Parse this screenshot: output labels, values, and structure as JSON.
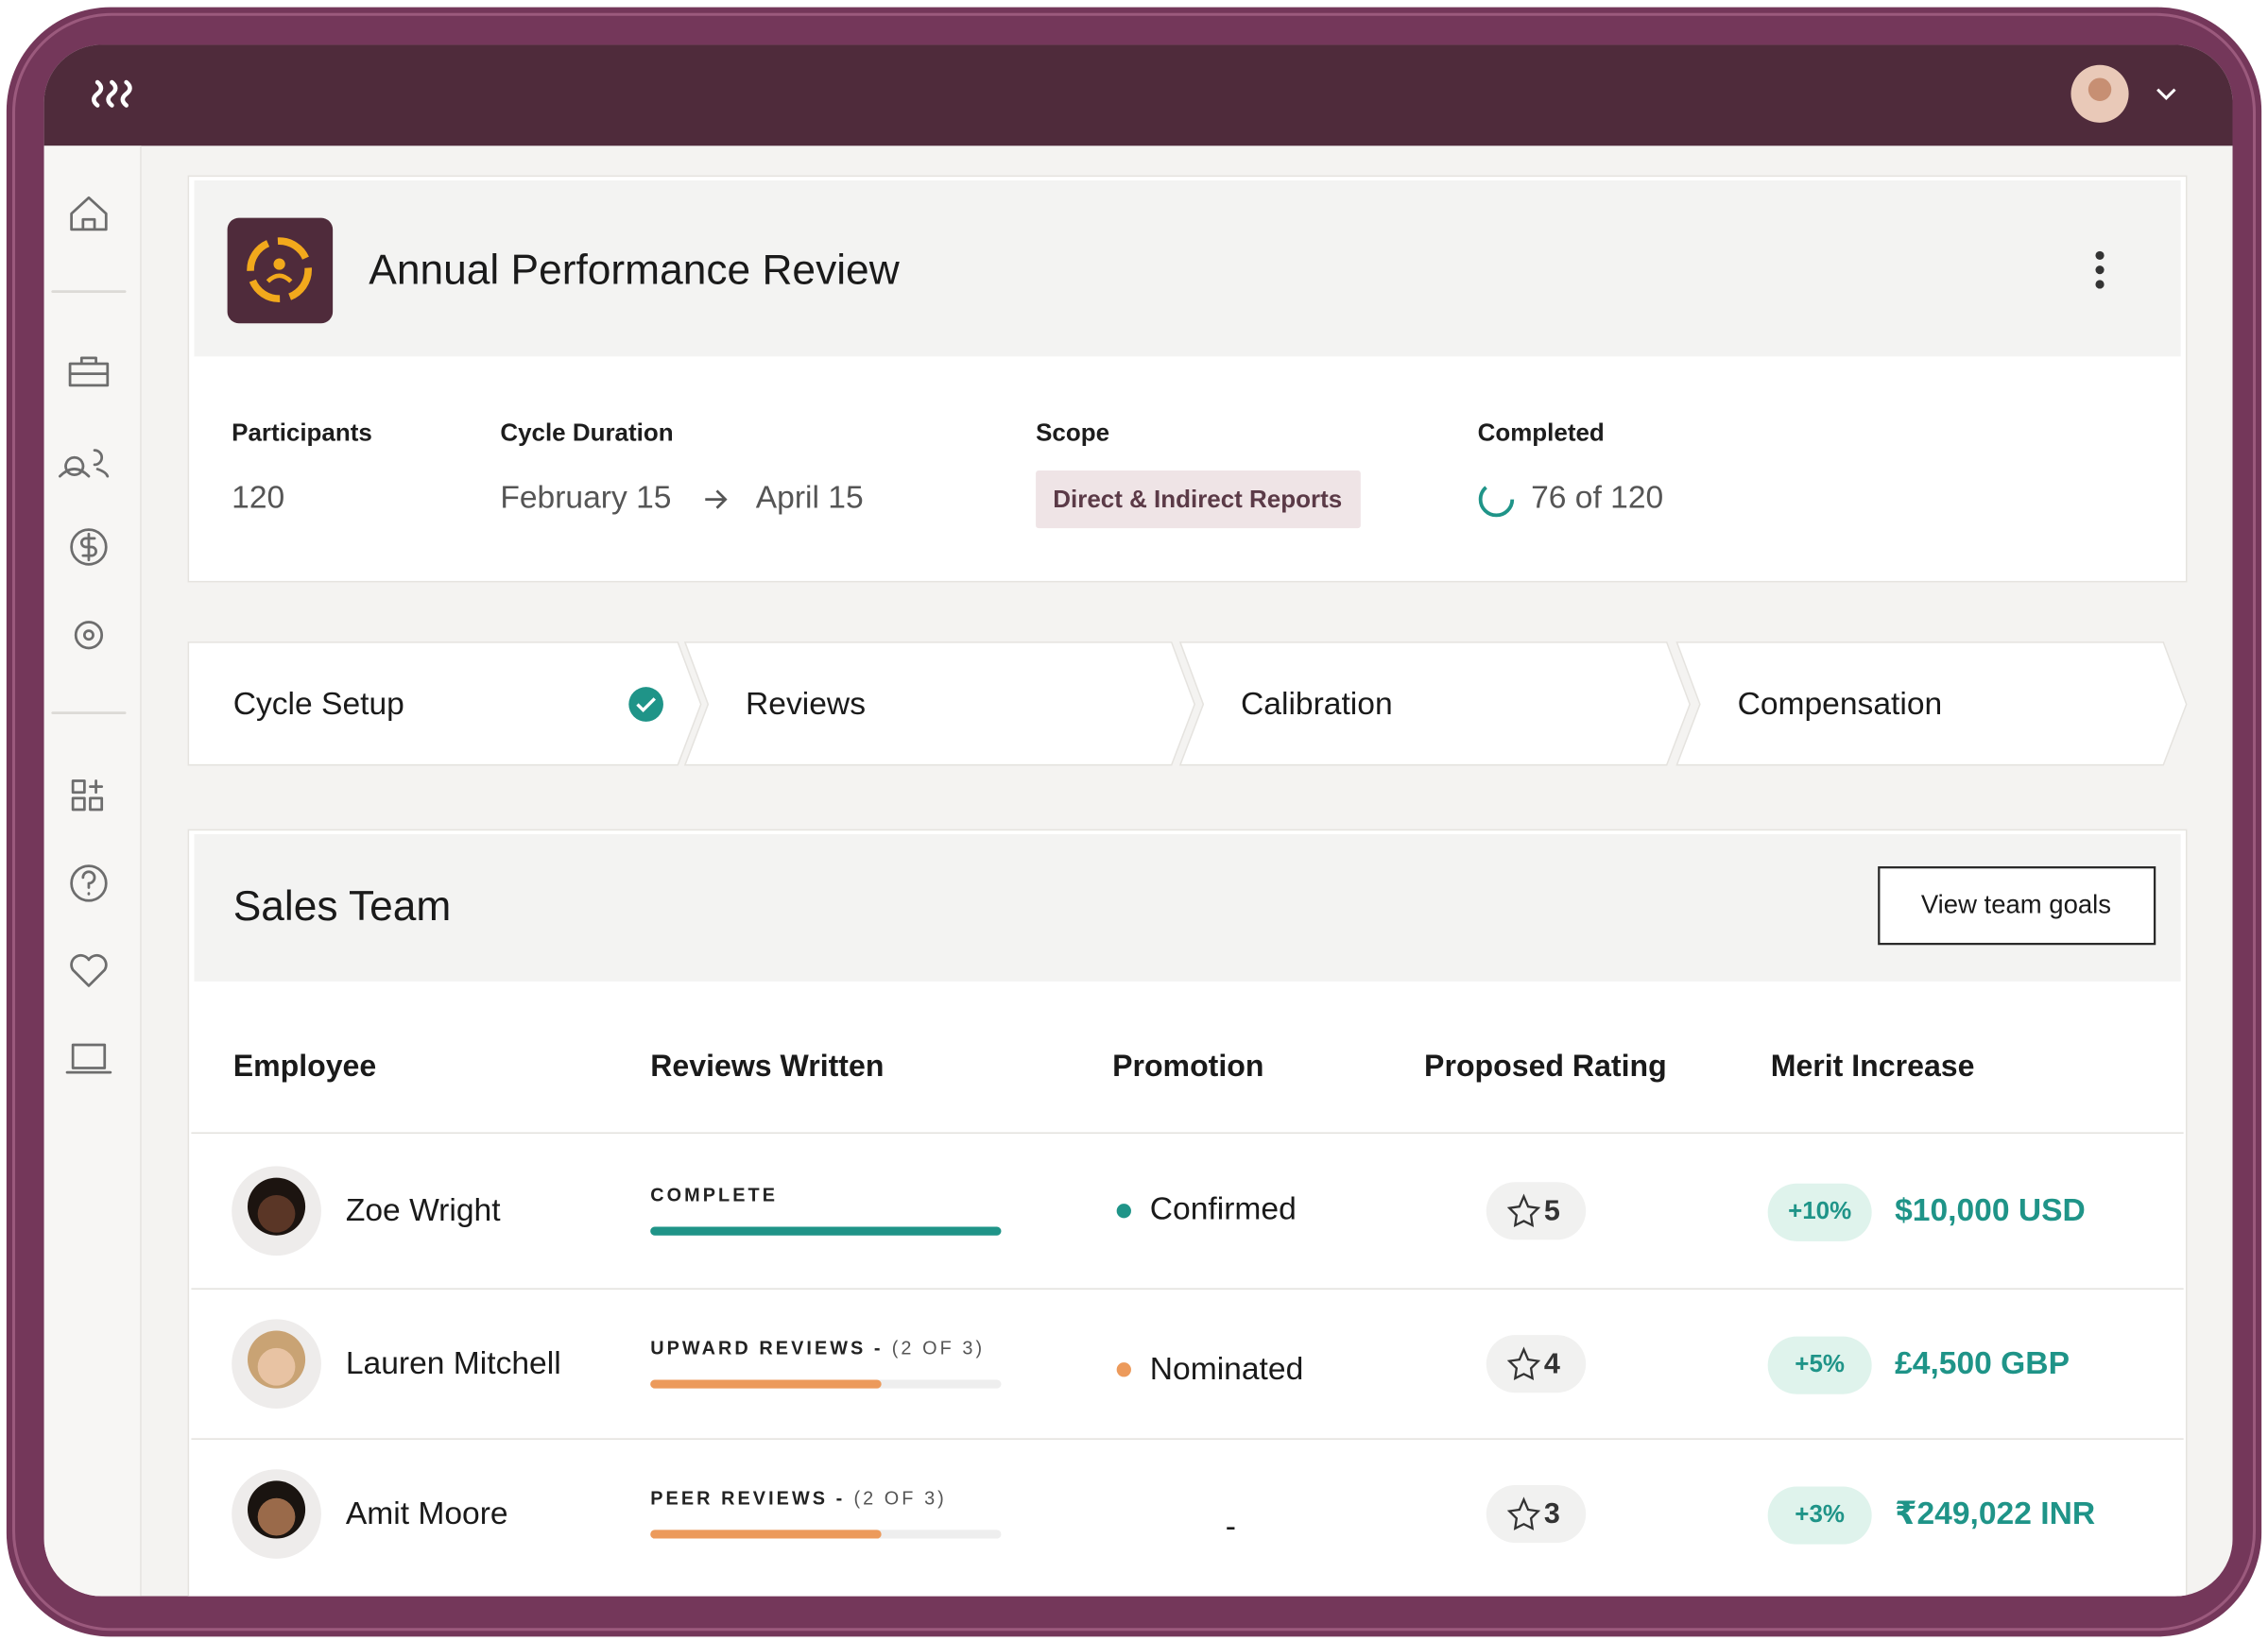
{
  "header": {
    "title": "Annual Performance Review"
  },
  "summary": {
    "participants": {
      "label": "Participants",
      "value": "120"
    },
    "cycle_duration": {
      "label": "Cycle Duration",
      "start": "February 15",
      "end": "April 15"
    },
    "scope": {
      "label": "Scope",
      "value": "Direct & Indirect Reports"
    },
    "completed": {
      "label": "Completed",
      "value": "76 of 120"
    }
  },
  "steps": [
    "Cycle Setup",
    "Reviews",
    "Calibration",
    "Compensation"
  ],
  "team": {
    "title": "Sales Team",
    "button": "View team goals"
  },
  "table": {
    "columns": [
      "Employee",
      "Reviews Written",
      "Promotion",
      "Proposed Rating",
      "Merit Increase"
    ],
    "rows": [
      {
        "employee": "Zoe Wright",
        "reviews": {
          "status": "COMPLETE"
        },
        "promotion": "Confirmed",
        "rating": "5",
        "merit_percent": "+10%",
        "merit_amount": "$10,000 USD"
      },
      {
        "employee": "Lauren Mitchell",
        "reviews": {
          "status": "UPWARD REVIEWS -",
          "count": "(2 OF 3)"
        },
        "promotion": "Nominated",
        "rating": "4",
        "merit_percent": "+5%",
        "merit_amount": "£4,500 GBP"
      },
      {
        "employee": "Amit Moore",
        "reviews": {
          "status": "PEER REVIEWS -",
          "count": "(2 OF 3)"
        },
        "promotion": "-",
        "rating": "3",
        "merit_percent": "+3%",
        "merit_amount": "₹249,022 INR"
      }
    ]
  }
}
